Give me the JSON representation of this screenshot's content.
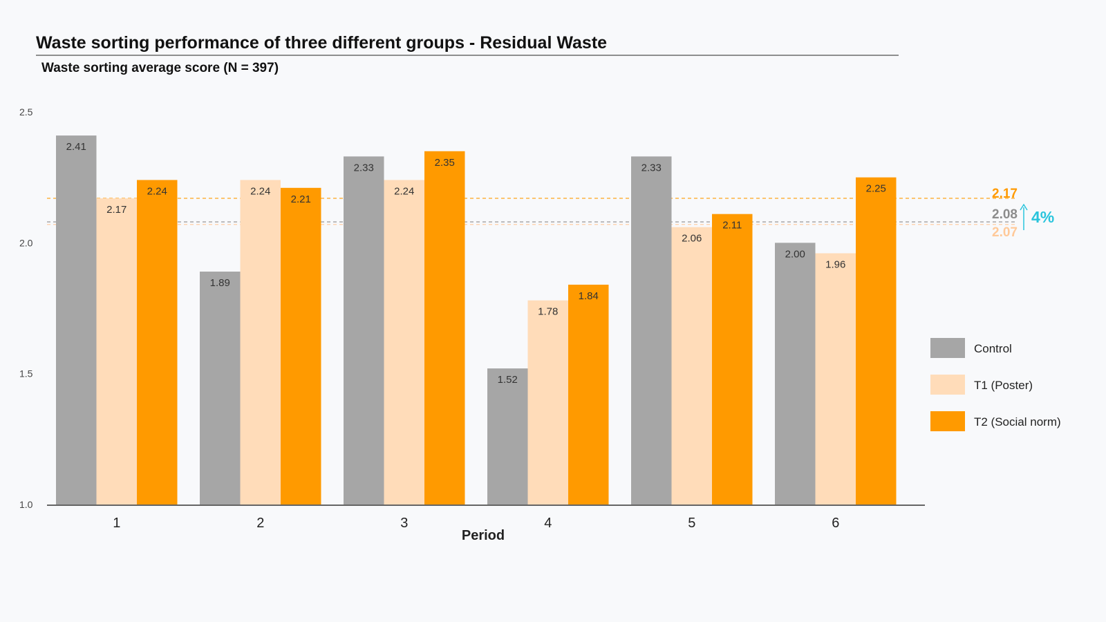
{
  "chart_data": {
    "type": "bar",
    "title": "Waste sorting performance of three different groups - Residual Waste",
    "subtitle": "Waste sorting average score (N = 397)",
    "xlabel": "Period",
    "ylabel": "",
    "categories": [
      "1",
      "2",
      "3",
      "4",
      "5",
      "6"
    ],
    "y_ticks": [
      "2.5",
      "2.0",
      "1.5",
      "1.0"
    ],
    "ylim": [
      1.0,
      2.5
    ],
    "grid": false,
    "legend_position": "right",
    "series": [
      {
        "name": "Control",
        "color": "#a6a6a6",
        "values": [
          2.41,
          1.89,
          2.33,
          1.52,
          2.33,
          2.0
        ],
        "labels": [
          "2.41",
          "1.89",
          "2.33",
          "1.52",
          "2.33",
          "2.00"
        ]
      },
      {
        "name": "T1 (Poster)",
        "color": "#ffdcb9",
        "values": [
          2.17,
          2.24,
          2.24,
          1.78,
          2.06,
          1.96
        ],
        "labels": [
          "2.17",
          "2.24",
          "2.24",
          "1.78",
          "2.06",
          "1.96"
        ]
      },
      {
        "name": "T2 (Social norm)",
        "color": "#ff9a00",
        "values": [
          2.24,
          2.21,
          2.35,
          1.84,
          2.11,
          2.25
        ],
        "labels": [
          "2.24",
          "2.21",
          "2.35",
          "1.84",
          "2.11",
          "2.25"
        ]
      }
    ],
    "reference_lines": [
      {
        "value": 2.17,
        "label": "2.17",
        "color": "#ff9a00"
      },
      {
        "value": 2.08,
        "label": "2.08",
        "color": "#8c8c8c"
      },
      {
        "value": 2.07,
        "label": "2.07",
        "color": "#ffc999"
      }
    ],
    "annotation": {
      "text": "4%",
      "color": "#29c4dc"
    }
  }
}
